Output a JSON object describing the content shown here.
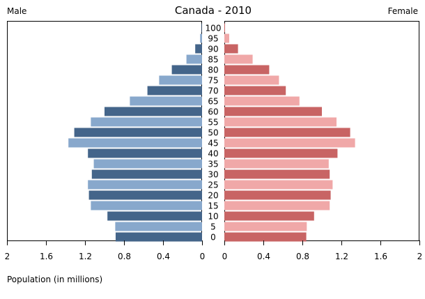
{
  "chart_data": {
    "type": "bar",
    "orientation": "horizontal-pyramid",
    "title": "Canada - 2010",
    "left_label": "Male",
    "right_label": "Female",
    "xlabel": "Population (in millions)",
    "xlim": [
      0,
      2
    ],
    "x_ticks_left": [
      "2",
      "1.6",
      "1.2",
      "0.8",
      "0.4",
      "0"
    ],
    "x_ticks_right": [
      "0",
      "0.4",
      "0.8",
      "1.2",
      "1.6",
      "2"
    ],
    "tick_values": [
      2,
      1.6,
      1.2,
      0.8,
      0.4,
      0
    ],
    "categories": [
      "100",
      "95",
      "90",
      "85",
      "80",
      "75",
      "70",
      "65",
      "60",
      "55",
      "50",
      "45",
      "40",
      "35",
      "30",
      "25",
      "20",
      "15",
      "10",
      "5",
      "0"
    ],
    "series": [
      {
        "name": "Male",
        "colors": [
          "#44658a",
          "#88a8cc"
        ],
        "values": [
          0.005,
          0.02,
          0.07,
          0.16,
          0.31,
          0.44,
          0.56,
          0.74,
          1.0,
          1.14,
          1.31,
          1.37,
          1.17,
          1.11,
          1.13,
          1.17,
          1.16,
          1.14,
          0.97,
          0.89,
          0.886
        ]
      },
      {
        "name": "Female",
        "colors": [
          "#c86464",
          "#f0a8a8"
        ],
        "values": [
          0.007,
          0.05,
          0.14,
          0.29,
          0.46,
          0.56,
          0.63,
          0.77,
          1.0,
          1.15,
          1.29,
          1.34,
          1.16,
          1.07,
          1.08,
          1.11,
          1.09,
          1.08,
          0.92,
          0.845,
          0.84
        ]
      }
    ]
  }
}
